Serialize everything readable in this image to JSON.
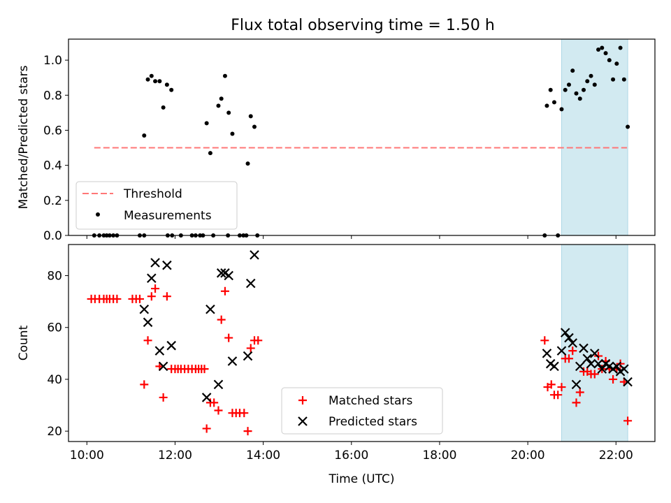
{
  "title": "Flux total observing time = 1.50 h",
  "colors": {
    "threshold": "#ff7777",
    "matched": "#ff0000",
    "predicted": "#000000",
    "measurement": "#000000",
    "span": "#add8e6"
  },
  "chart_data": [
    {
      "type": "scatter",
      "ylabel": "Matched/Predicted stars",
      "xlim": [
        "09:35",
        "22:53"
      ],
      "ylim": [
        0,
        1.12
      ],
      "yticks": [
        "0.0",
        "0.2",
        "0.4",
        "0.6",
        "0.8",
        "1.0"
      ],
      "shaded_span": [
        "20:46",
        "22:16"
      ],
      "legend": {
        "placement": "lower-left",
        "entries": [
          "Threshold",
          "Measurements"
        ]
      },
      "threshold": {
        "name": "Threshold",
        "value": 0.5,
        "x": [
          "10:10",
          "22:15"
        ]
      },
      "measurements": {
        "name": "Measurements",
        "points": [
          [
            "10:10",
            0
          ],
          [
            "10:17",
            0
          ],
          [
            "10:23",
            0
          ],
          [
            "10:27",
            0
          ],
          [
            "10:31",
            0
          ],
          [
            "10:36",
            0
          ],
          [
            "10:41",
            0
          ],
          [
            "11:12",
            0
          ],
          [
            "11:18",
            0
          ],
          [
            "11:50",
            0
          ],
          [
            "11:56",
            0
          ],
          [
            "12:08",
            0
          ],
          [
            "12:23",
            0
          ],
          [
            "12:28",
            0
          ],
          [
            "12:34",
            0
          ],
          [
            "12:38",
            0
          ],
          [
            "12:52",
            0
          ],
          [
            "13:12",
            0
          ],
          [
            "13:28",
            0
          ],
          [
            "13:33",
            0
          ],
          [
            "13:37",
            0
          ],
          [
            "13:52",
            0
          ],
          [
            "11:18",
            0.57
          ],
          [
            "11:23",
            0.89
          ],
          [
            "11:28",
            0.91
          ],
          [
            "11:33",
            0.88
          ],
          [
            "11:39",
            0.88
          ],
          [
            "11:44",
            0.73
          ],
          [
            "11:49",
            0.86
          ],
          [
            "11:55",
            0.83
          ],
          [
            "12:43",
            0.64
          ],
          [
            "12:48",
            0.47
          ],
          [
            "12:59",
            0.74
          ],
          [
            "13:03",
            0.78
          ],
          [
            "13:08",
            0.91
          ],
          [
            "13:13",
            0.7
          ],
          [
            "13:18",
            0.58
          ],
          [
            "13:39",
            0.41
          ],
          [
            "13:43",
            0.68
          ],
          [
            "13:48",
            0.62
          ],
          [
            "20:23",
            0
          ],
          [
            "20:41",
            0
          ],
          [
            "20:26",
            0.74
          ],
          [
            "20:31",
            0.83
          ],
          [
            "20:36",
            0.76
          ],
          [
            "20:46",
            0.72
          ],
          [
            "20:51",
            0.83
          ],
          [
            "20:56",
            0.86
          ],
          [
            "21:01",
            0.94
          ],
          [
            "21:06",
            0.81
          ],
          [
            "21:11",
            0.78
          ],
          [
            "21:16",
            0.83
          ],
          [
            "21:21",
            0.88
          ],
          [
            "21:26",
            0.91
          ],
          [
            "21:31",
            0.86
          ],
          [
            "21:36",
            1.06
          ],
          [
            "21:41",
            1.07
          ],
          [
            "21:46",
            1.04
          ],
          [
            "21:51",
            1.0
          ],
          [
            "21:56",
            0.89
          ],
          [
            "22:01",
            0.98
          ],
          [
            "22:06",
            1.07
          ],
          [
            "22:11",
            0.89
          ],
          [
            "22:16",
            0.62
          ]
        ]
      }
    },
    {
      "type": "scatter",
      "ylabel": "Count",
      "xlabel": "Time (UTC)",
      "xlim": [
        "09:35",
        "22:53"
      ],
      "ylim": [
        16,
        92
      ],
      "yticks": [
        "20",
        "40",
        "60",
        "80"
      ],
      "xticks": [
        "10:00",
        "12:00",
        "14:00",
        "16:00",
        "18:00",
        "20:00",
        "22:00"
      ],
      "shaded_span": [
        "20:46",
        "22:16"
      ],
      "legend": {
        "placement": "lower-center",
        "entries": [
          "Matched stars",
          "Predicted stars"
        ]
      },
      "series": [
        {
          "name": "Matched stars",
          "marker": "plus",
          "points": [
            [
              "10:06",
              71
            ],
            [
              "10:11",
              71
            ],
            [
              "10:17",
              71
            ],
            [
              "10:23",
              71
            ],
            [
              "10:27",
              71
            ],
            [
              "10:31",
              71
            ],
            [
              "10:36",
              71
            ],
            [
              "10:41",
              71
            ],
            [
              "11:02",
              71
            ],
            [
              "11:07",
              71
            ],
            [
              "11:12",
              71
            ],
            [
              "11:18",
              38
            ],
            [
              "11:23",
              55
            ],
            [
              "11:28",
              72
            ],
            [
              "11:33",
              75
            ],
            [
              "11:39",
              45
            ],
            [
              "11:44",
              33
            ],
            [
              "11:49",
              72
            ],
            [
              "11:55",
              44
            ],
            [
              "12:00",
              44
            ],
            [
              "12:04",
              44
            ],
            [
              "12:08",
              44
            ],
            [
              "12:13",
              44
            ],
            [
              "12:18",
              44
            ],
            [
              "12:23",
              44
            ],
            [
              "12:28",
              44
            ],
            [
              "12:32",
              44
            ],
            [
              "12:36",
              44
            ],
            [
              "12:40",
              44
            ],
            [
              "12:43",
              21
            ],
            [
              "12:48",
              31
            ],
            [
              "12:53",
              31
            ],
            [
              "12:59",
              28
            ],
            [
              "13:03",
              63
            ],
            [
              "13:08",
              74
            ],
            [
              "13:13",
              56
            ],
            [
              "13:18",
              27
            ],
            [
              "13:23",
              27
            ],
            [
              "13:28",
              27
            ],
            [
              "13:34",
              27
            ],
            [
              "13:39",
              20
            ],
            [
              "13:43",
              52
            ],
            [
              "13:48",
              55
            ],
            [
              "13:53",
              55
            ],
            [
              "20:23",
              55
            ],
            [
              "20:27",
              37
            ],
            [
              "20:32",
              38
            ],
            [
              "20:36",
              34
            ],
            [
              "20:41",
              34
            ],
            [
              "20:46",
              37
            ],
            [
              "20:51",
              48
            ],
            [
              "20:56",
              48
            ],
            [
              "21:01",
              51
            ],
            [
              "21:06",
              31
            ],
            [
              "21:11",
              35
            ],
            [
              "21:16",
              43
            ],
            [
              "21:21",
              43
            ],
            [
              "21:26",
              42
            ],
            [
              "21:31",
              42
            ],
            [
              "21:36",
              49
            ],
            [
              "21:41",
              44
            ],
            [
              "21:46",
              47
            ],
            [
              "21:51",
              44
            ],
            [
              "21:56",
              40
            ],
            [
              "22:01",
              44
            ],
            [
              "22:06",
              46
            ],
            [
              "22:11",
              39
            ],
            [
              "22:16",
              24
            ]
          ]
        },
        {
          "name": "Predicted stars",
          "marker": "x",
          "points": [
            [
              "11:18",
              67
            ],
            [
              "11:23",
              62
            ],
            [
              "11:28",
              79
            ],
            [
              "11:33",
              85
            ],
            [
              "11:39",
              51
            ],
            [
              "11:44",
              45
            ],
            [
              "11:49",
              84
            ],
            [
              "11:55",
              53
            ],
            [
              "12:43",
              33
            ],
            [
              "12:48",
              67
            ],
            [
              "12:59",
              38
            ],
            [
              "13:03",
              81
            ],
            [
              "13:08",
              81
            ],
            [
              "13:13",
              80
            ],
            [
              "13:18",
              47
            ],
            [
              "13:39",
              49
            ],
            [
              "13:43",
              77
            ],
            [
              "13:48",
              88
            ],
            [
              "20:26",
              50
            ],
            [
              "20:31",
              46
            ],
            [
              "20:36",
              45
            ],
            [
              "20:46",
              51
            ],
            [
              "20:51",
              58
            ],
            [
              "20:56",
              56
            ],
            [
              "21:01",
              54
            ],
            [
              "21:06",
              38
            ],
            [
              "21:11",
              45
            ],
            [
              "21:16",
              52
            ],
            [
              "21:21",
              48
            ],
            [
              "21:26",
              46
            ],
            [
              "21:31",
              50
            ],
            [
              "21:36",
              46
            ],
            [
              "21:41",
              44
            ],
            [
              "21:46",
              46
            ],
            [
              "21:51",
              45
            ],
            [
              "21:56",
              44
            ],
            [
              "22:01",
              45
            ],
            [
              "22:06",
              43
            ],
            [
              "22:11",
              44
            ],
            [
              "22:16",
              39
            ]
          ]
        }
      ]
    }
  ]
}
